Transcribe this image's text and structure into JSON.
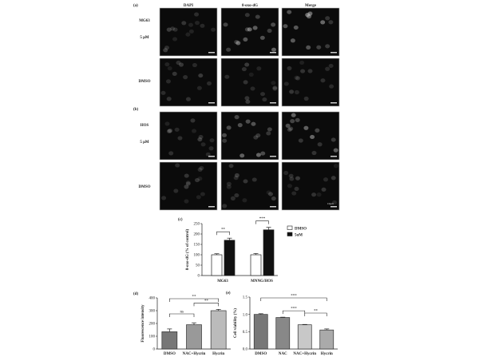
{
  "panels": {
    "a_label": "(a)",
    "b_label": "(b)",
    "columns": [
      "DAPI",
      "8-oxo-dG",
      "Merge"
    ],
    "a_rows": [
      [
        "MG63",
        "5 μM"
      ],
      [
        "DMSO"
      ]
    ],
    "b_rows": [
      [
        "HOS",
        "5 μM"
      ],
      [
        "DMSO"
      ]
    ],
    "scale_bar": "10μm"
  },
  "chart_data": [
    {
      "panel": "(c)",
      "type": "bar",
      "categories": [
        "MG63",
        "MNNG/HOS"
      ],
      "series": [
        {
          "name": "DMSO",
          "values": [
            100,
            100
          ],
          "errors": [
            5,
            6
          ],
          "color": "#ffffff"
        },
        {
          "name": "5uM",
          "values": [
            170,
            220
          ],
          "errors": [
            10,
            12
          ],
          "color": "#111111"
        }
      ],
      "significance": [
        "**",
        "***"
      ],
      "ylabel": "8-oxo-dG (% of control)",
      "ylim": [
        0,
        250
      ],
      "yticks": [
        0,
        50,
        100,
        150,
        200,
        250
      ],
      "legend": "right"
    },
    {
      "panel": "(d)",
      "type": "bar",
      "categories": [
        "DMSO",
        "NAC+Hycrin",
        "Hycrin"
      ],
      "values": [
        135,
        190,
        300
      ],
      "errors": [
        22,
        15,
        10
      ],
      "significance": [
        {
          "pair": [
            "DMSO",
            "NAC+Hycrin"
          ],
          "mark": "ns"
        },
        {
          "pair": [
            "NAC+Hycrin",
            "Hycrin"
          ],
          "mark": "**"
        },
        {
          "pair": [
            "DMSO",
            "Hycrin"
          ],
          "mark": "**"
        }
      ],
      "ylabel": "Fluorescence intensity",
      "ylim": [
        0,
        400
      ],
      "yticks": [
        0,
        100,
        200,
        300,
        400
      ]
    },
    {
      "panel": "(e)",
      "type": "bar",
      "categories": [
        "DMSO",
        "NAC",
        "NAC+Hycrin",
        "Hycrin"
      ],
      "values": [
        1.0,
        0.91,
        0.7,
        0.55
      ],
      "errors": [
        0.02,
        0.01,
        0.01,
        0.03
      ],
      "significance": [
        {
          "pair": [
            "NAC",
            "NAC+Hycrin"
          ],
          "mark": "***"
        },
        {
          "pair": [
            "NAC+Hycrin",
            "Hycrin"
          ],
          "mark": "**"
        },
        {
          "pair": [
            "DMSO",
            "Hycrin"
          ],
          "mark": "***"
        }
      ],
      "ylabel": "Cell viability (%)",
      "ylim": [
        0,
        1.5
      ],
      "yticks": [
        "0.0",
        "0.5",
        "1.0",
        "1.5"
      ]
    }
  ]
}
